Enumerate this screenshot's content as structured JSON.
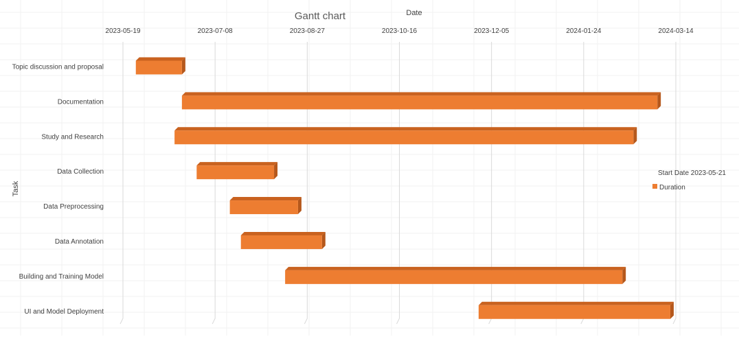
{
  "chart_data": {
    "type": "bar",
    "orientation": "horizontal-gantt",
    "title": "Gantt chart",
    "xlabel": "Date",
    "ylabel": "Task",
    "x_axis_position": "top",
    "x_ticks": [
      "2023-05-19",
      "2023-07-08",
      "2023-08-27",
      "2023-10-16",
      "2023-12-05",
      "2024-01-24",
      "2024-03-14"
    ],
    "xlim": [
      "2023-05-19",
      "2024-03-14"
    ],
    "grid": true,
    "legend": {
      "placement": "right",
      "header": "Start Date 2023-05-21",
      "entries": [
        {
          "name": "Duration",
          "color": "#ED7D31"
        }
      ]
    },
    "colors": {
      "bar": "#ED7D31",
      "bar_side": "#B5581C",
      "bar_top": "#C9621F",
      "grid": "#D9D9D9"
    },
    "categories": [
      "Topic discussion and proposal",
      "Documentation",
      "Study and Research",
      "Data Collection",
      "Data Preprocessing",
      "Data Annotation",
      "Building and Training Model",
      "UI and Model Deployment"
    ],
    "series": [
      {
        "name": "Duration",
        "start": [
          "2023-05-26",
          "2023-06-20",
          "2023-06-16",
          "2023-06-28",
          "2023-07-16",
          "2023-07-22",
          "2023-08-15",
          "2023-11-28"
        ],
        "end": [
          "2023-06-20",
          "2024-03-04",
          "2024-02-20",
          "2023-08-09",
          "2023-08-22",
          "2023-09-04",
          "2024-02-14",
          "2024-03-11"
        ]
      }
    ]
  }
}
